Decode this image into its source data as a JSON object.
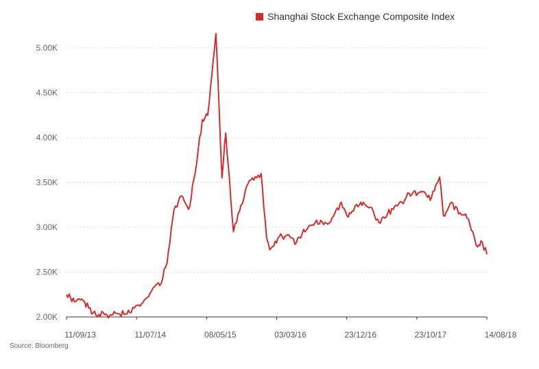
{
  "chart_data": {
    "type": "line",
    "title": "",
    "xlabel": "",
    "ylabel": "",
    "ylim": [
      2000,
      5200
    ],
    "grid": true,
    "legend_position": "top-right",
    "color": "#d52b2b",
    "y_ticks": [
      "2.00K",
      "2.50K",
      "3.00K",
      "3.50K",
      "4.00K",
      "4.50K",
      "5.00K"
    ],
    "y_tick_values": [
      2000,
      2500,
      3000,
      3500,
      4000,
      4500,
      5000
    ],
    "x_ticks": [
      "11/09/13",
      "11/07/14",
      "08/05/15",
      "03/03/16",
      "23/12/16",
      "23/10/17",
      "14/08/18"
    ],
    "x_range": [
      "2013-09-11",
      "2018-08-14"
    ],
    "series": [
      {
        "name": "Shanghai Stock Exchange Composite Index",
        "x": [
          "2013-09-11",
          "2013-10-15",
          "2013-11-15",
          "2013-12-15",
          "2014-01-15",
          "2014-02-15",
          "2014-03-15",
          "2014-04-15",
          "2014-05-15",
          "2014-06-15",
          "2014-07-11",
          "2014-08-15",
          "2014-09-15",
          "2014-10-15",
          "2014-11-15",
          "2014-12-15",
          "2015-01-15",
          "2015-02-15",
          "2015-03-15",
          "2015-04-15",
          "2015-05-08",
          "2015-06-12",
          "2015-07-08",
          "2015-07-24",
          "2015-08-26",
          "2015-09-15",
          "2015-10-15",
          "2015-11-15",
          "2015-12-22",
          "2016-01-15",
          "2016-01-28",
          "2016-03-03",
          "2016-04-15",
          "2016-05-15",
          "2016-06-15",
          "2016-07-15",
          "2016-08-15",
          "2016-09-15",
          "2016-10-15",
          "2016-11-29",
          "2016-12-23",
          "2017-01-15",
          "2017-02-15",
          "2017-03-15",
          "2017-04-15",
          "2017-05-10",
          "2017-06-15",
          "2017-07-15",
          "2017-08-15",
          "2017-09-15",
          "2017-10-23",
          "2017-11-15",
          "2017-12-15",
          "2018-01-24",
          "2018-02-09",
          "2018-03-15",
          "2018-04-15",
          "2018-05-15",
          "2018-06-15",
          "2018-07-05",
          "2018-07-20",
          "2018-08-14"
        ],
        "values": [
          2250,
          2170,
          2200,
          2100,
          2020,
          2050,
          2020,
          2040,
          2030,
          2050,
          2130,
          2200,
          2320,
          2350,
          2600,
          3200,
          3350,
          3200,
          3600,
          4200,
          4250,
          5160,
          3550,
          4050,
          2950,
          3150,
          3400,
          3550,
          3600,
          2880,
          2750,
          2880,
          2920,
          2810,
          2930,
          3020,
          3080,
          3030,
          3060,
          3280,
          3130,
          3180,
          3250,
          3240,
          3180,
          3050,
          3150,
          3230,
          3280,
          3380,
          3380,
          3400,
          3300,
          3560,
          3130,
          3280,
          3150,
          3150,
          2950,
          2780,
          2850,
          2700
        ]
      }
    ]
  },
  "source": "Source: Bloomberg"
}
